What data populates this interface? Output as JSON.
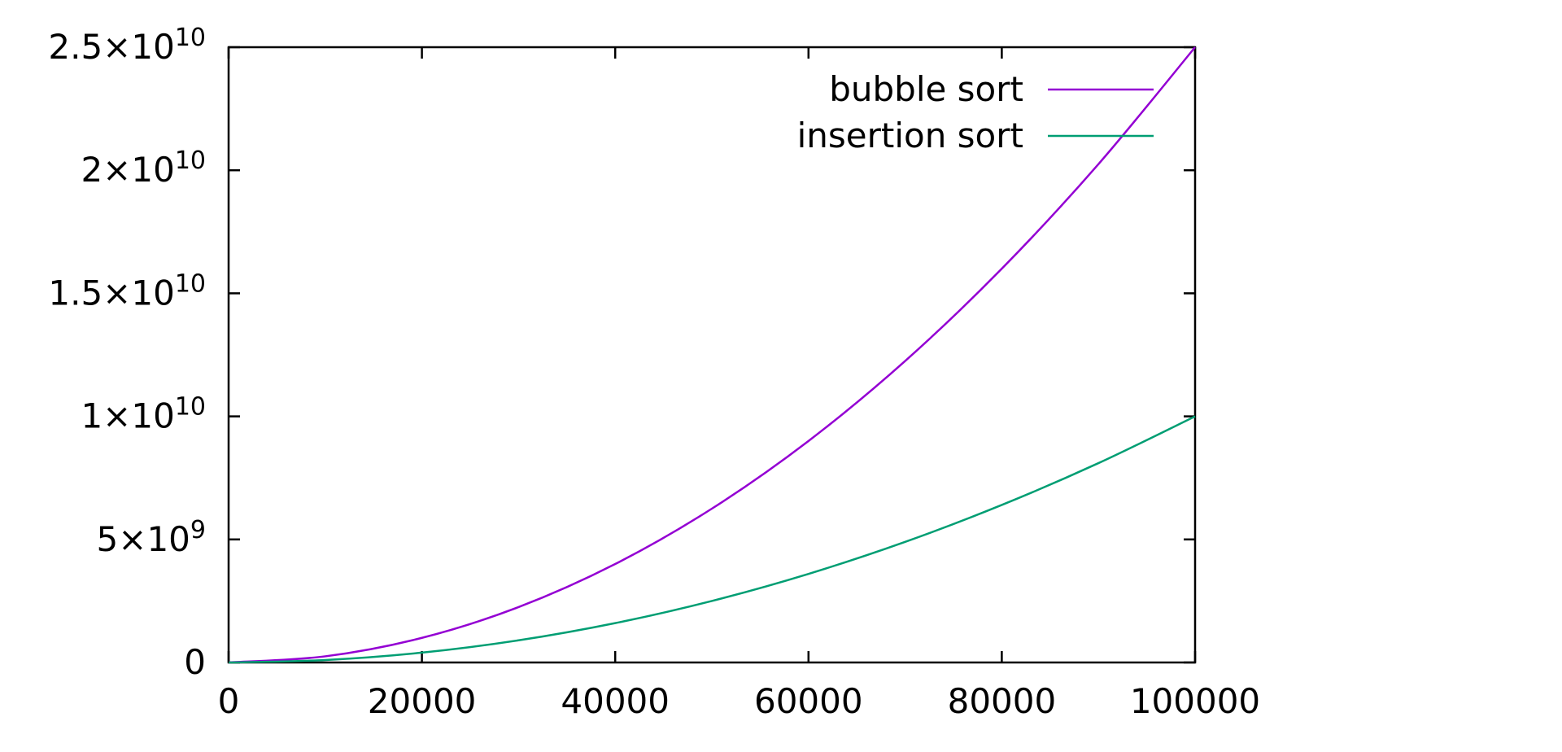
{
  "chart_data": {
    "type": "line",
    "title": "",
    "xlabel": "",
    "ylabel": "",
    "xlim": [
      0,
      100000
    ],
    "ylim": [
      0,
      25000000000
    ],
    "grid": false,
    "legend_position": "top-right",
    "x_ticks": [
      {
        "value": 0,
        "label": "0"
      },
      {
        "value": 20000,
        "label": "20000"
      },
      {
        "value": 40000,
        "label": "40000"
      },
      {
        "value": 60000,
        "label": "60000"
      },
      {
        "value": 80000,
        "label": "80000"
      },
      {
        "value": 100000,
        "label": "100000"
      }
    ],
    "y_ticks": [
      {
        "value": 0,
        "mantissa": "0",
        "exponent": ""
      },
      {
        "value": 5000000000,
        "mantissa": "5×10",
        "exponent": "9"
      },
      {
        "value": 10000000000,
        "mantissa": "1×10",
        "exponent": "10"
      },
      {
        "value": 15000000000,
        "mantissa": "1.5×10",
        "exponent": "10"
      },
      {
        "value": 20000000000,
        "mantissa": "2×10",
        "exponent": "10"
      },
      {
        "value": 25000000000,
        "mantissa": "2.5×10",
        "exponent": "10"
      }
    ],
    "x": [
      0,
      10000,
      20000,
      30000,
      40000,
      50000,
      60000,
      70000,
      80000,
      90000,
      100000
    ],
    "series": [
      {
        "name": "bubble sort",
        "color": "#9400d3",
        "values": [
          0,
          250000000,
          1000000000,
          2250000000,
          4000000000,
          6250000000,
          9000000000,
          12250000000,
          16000000000,
          20250000000,
          25000000000
        ]
      },
      {
        "name": "insertion sort",
        "color": "#009e73",
        "values": [
          0,
          100000000,
          400000000,
          900000000,
          1600000000,
          2500000000,
          3600000000,
          4900000000,
          6400000000,
          8100000000,
          10000000000
        ]
      }
    ]
  }
}
